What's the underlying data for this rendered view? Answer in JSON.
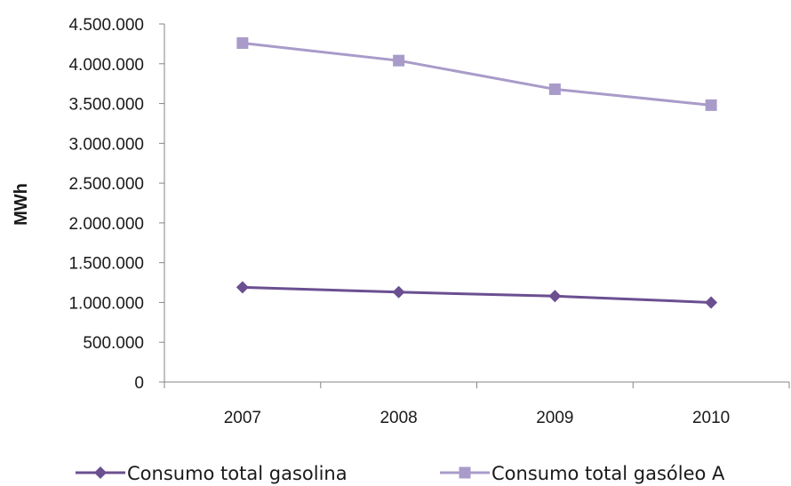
{
  "chart_data": {
    "type": "line",
    "categories": [
      "2007",
      "2008",
      "2009",
      "2010"
    ],
    "series": [
      {
        "name": "Consumo total gasolina",
        "values": [
          1190000,
          1130000,
          1080000,
          1000000
        ],
        "color": "#6b4f91",
        "marker": "diamond"
      },
      {
        "name": "Consumo total gasóleo A",
        "values": [
          4260000,
          4040000,
          3680000,
          3480000
        ],
        "color": "#a99bc9",
        "marker": "square"
      }
    ],
    "ylabel": "MWh",
    "ylim": [
      0,
      4500000
    ],
    "y_ticks": [
      "0",
      "500.000",
      "1.000.000",
      "1.500.000",
      "2.000.000",
      "2.500.000",
      "3.000.000",
      "3.500.000",
      "4.000.000",
      "4.500.000"
    ],
    "y_tick_values": [
      0,
      500000,
      1000000,
      1500000,
      2000000,
      2500000,
      3000000,
      3500000,
      4000000,
      4500000
    ],
    "grid": false,
    "legend_position": "bottom"
  }
}
